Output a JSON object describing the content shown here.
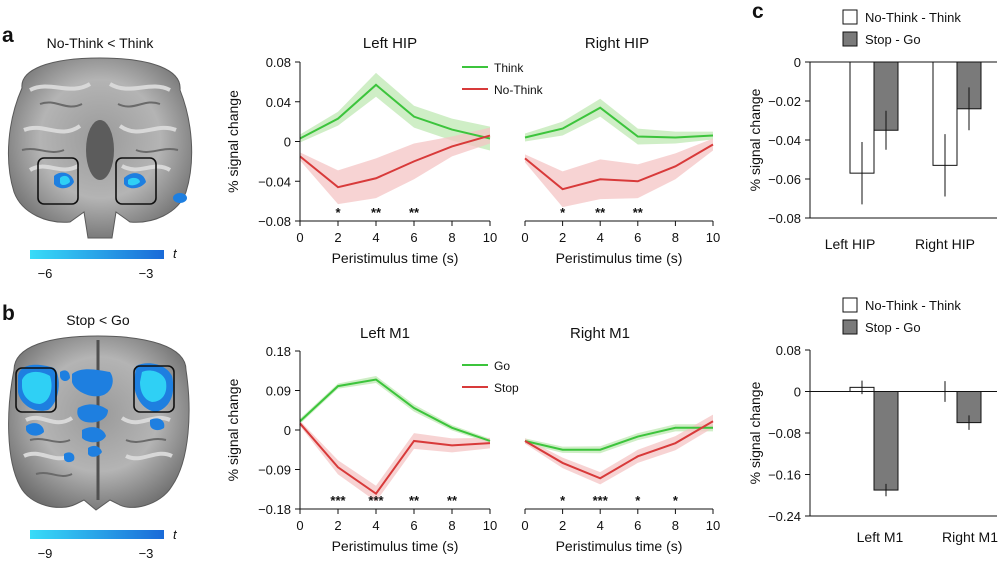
{
  "panels": {
    "a": "a",
    "b": "b",
    "c": "c"
  },
  "brains": {
    "a": {
      "title": "No-Think < Think",
      "colorbar_label": "t",
      "colorbar_min": "−6",
      "colorbar_max": "−3"
    },
    "b": {
      "title": "Stop < Go",
      "colorbar_label": "t",
      "colorbar_min": "−9",
      "colorbar_max": "−3"
    }
  },
  "colors": {
    "green": "#3cc43c",
    "red": "#d83a3a",
    "green_band": "#bfe8b3",
    "red_band": "#f4c4c4",
    "bar_white": "#ffffff",
    "bar_gray": "#7a7a7a",
    "brain_blue": "#1e7fe0",
    "brain_cyan": "#2fd0f5"
  },
  "chart_data": [
    {
      "id": "left_hip",
      "type": "line",
      "title": "Left HIP",
      "xlabel": "Peristimulus time (s)",
      "ylabel": "% signal change",
      "xlim": [
        0,
        10
      ],
      "ylim": [
        -0.08,
        0.08
      ],
      "xticks": [
        0,
        2,
        4,
        6,
        8,
        10
      ],
      "yticks": [
        -0.08,
        -0.04,
        0,
        0.04,
        0.08
      ],
      "yticklabels": [
        "−0.08",
        "−0.04",
        "0",
        "0.04",
        "0.08"
      ],
      "legend": [
        "Think",
        "No-Think"
      ],
      "x": [
        0,
        2,
        4,
        6,
        8,
        10
      ],
      "series": [
        {
          "name": "Think",
          "values": [
            0.003,
            0.023,
            0.057,
            0.025,
            0.012,
            0.003
          ],
          "err": [
            0.004,
            0.007,
            0.012,
            0.011,
            0.011,
            0.012
          ]
        },
        {
          "name": "No-Think",
          "values": [
            -0.015,
            -0.046,
            -0.037,
            -0.02,
            -0.005,
            0.006
          ],
          "err": [
            0.004,
            0.017,
            0.02,
            0.018,
            0.01,
            0.008
          ]
        }
      ],
      "stars": [
        {
          "x": 2,
          "text": "*"
        },
        {
          "x": 4,
          "text": "**"
        },
        {
          "x": 6,
          "text": "**"
        }
      ]
    },
    {
      "id": "right_hip",
      "type": "line",
      "title": "Right HIP",
      "xlabel": "Peristimulus time (s)",
      "ylabel": "",
      "xlim": [
        0,
        10
      ],
      "ylim": [
        -0.08,
        0.08
      ],
      "xticks": [
        0,
        2,
        4,
        6,
        8,
        10
      ],
      "yticks": [],
      "legend": [],
      "x": [
        0,
        2,
        4,
        6,
        8,
        10
      ],
      "series": [
        {
          "name": "Think",
          "values": [
            0.004,
            0.013,
            0.034,
            0.005,
            0.004,
            0.006
          ],
          "err": [
            0.004,
            0.007,
            0.009,
            0.008,
            0.006,
            0.004
          ]
        },
        {
          "name": "No-Think",
          "values": [
            -0.017,
            -0.048,
            -0.038,
            -0.04,
            -0.025,
            -0.003
          ],
          "err": [
            0.004,
            0.018,
            0.02,
            0.017,
            0.013,
            0.006
          ]
        }
      ],
      "stars": [
        {
          "x": 2,
          "text": "*"
        },
        {
          "x": 4,
          "text": "**"
        },
        {
          "x": 6,
          "text": "**"
        }
      ]
    },
    {
      "id": "left_m1",
      "type": "line",
      "title": "Left M1",
      "xlabel": "Peristimulus time (s)",
      "ylabel": "% signal change",
      "xlim": [
        0,
        10
      ],
      "ylim": [
        -0.18,
        0.18
      ],
      "xticks": [
        0,
        2,
        4,
        6,
        8,
        10
      ],
      "yticks": [
        -0.18,
        -0.09,
        0,
        0.09,
        0.18
      ],
      "yticklabels": [
        "−0.18",
        "−0.09",
        "0",
        "0.09",
        "0.18"
      ],
      "legend": [
        "Go",
        "Stop"
      ],
      "x": [
        0,
        2,
        4,
        6,
        8,
        10
      ],
      "series": [
        {
          "name": "Go",
          "values": [
            0.02,
            0.1,
            0.115,
            0.05,
            0.005,
            -0.025
          ],
          "err": [
            0.006,
            0.006,
            0.008,
            0.008,
            0.006,
            0.005
          ]
        },
        {
          "name": "Stop",
          "values": [
            0.015,
            -0.085,
            -0.145,
            -0.025,
            -0.035,
            -0.03
          ],
          "err": [
            0.006,
            0.016,
            0.018,
            0.018,
            0.016,
            0.012
          ]
        }
      ],
      "stars": [
        {
          "x": 2,
          "text": "***"
        },
        {
          "x": 4,
          "text": "***"
        },
        {
          "x": 6,
          "text": "**"
        },
        {
          "x": 8,
          "text": "**"
        }
      ]
    },
    {
      "id": "right_m1",
      "type": "line",
      "title": "Right M1",
      "xlabel": "Peristimulus time (s)",
      "ylabel": "",
      "xlim": [
        0,
        10
      ],
      "ylim": [
        -0.18,
        0.18
      ],
      "xticks": [
        0,
        2,
        4,
        6,
        8,
        10
      ],
      "yticks": [],
      "legend": [],
      "x": [
        0,
        2,
        4,
        6,
        8,
        10
      ],
      "series": [
        {
          "name": "Go",
          "values": [
            -0.025,
            -0.045,
            -0.045,
            -0.015,
            0.005,
            0.005
          ],
          "err": [
            0.006,
            0.007,
            0.008,
            0.008,
            0.008,
            0.008
          ]
        },
        {
          "name": "Stop",
          "values": [
            -0.025,
            -0.075,
            -0.11,
            -0.06,
            -0.03,
            0.02
          ],
          "err": [
            0.006,
            0.012,
            0.014,
            0.015,
            0.016,
            0.015
          ]
        }
      ],
      "stars": [
        {
          "x": 2,
          "text": "*"
        },
        {
          "x": 4,
          "text": "***"
        },
        {
          "x": 6,
          "text": "*"
        },
        {
          "x": 8,
          "text": "*"
        }
      ]
    },
    {
      "id": "c_hip",
      "type": "bar",
      "ylabel": "% signal change",
      "ylim": [
        -0.08,
        0
      ],
      "yticks": [
        -0.08,
        -0.06,
        -0.04,
        -0.02,
        0
      ],
      "yticklabels": [
        "−0.08",
        "−0.06",
        "−0.04",
        "−0.02",
        "0"
      ],
      "legend": [
        "No-Think - Think",
        "Stop - Go"
      ],
      "categories": [
        "Left HIP",
        "Right HIP"
      ],
      "series": [
        {
          "name": "No-Think - Think",
          "values": [
            -0.057,
            -0.053
          ],
          "err": [
            0.016,
            0.016
          ]
        },
        {
          "name": "Stop - Go",
          "values": [
            -0.035,
            -0.024
          ],
          "err": [
            0.01,
            0.011
          ]
        }
      ]
    },
    {
      "id": "c_m1",
      "type": "bar",
      "ylabel": "% signal change",
      "ylim": [
        -0.24,
        0.08
      ],
      "yticks": [
        -0.24,
        -0.16,
        -0.08,
        0,
        0.08
      ],
      "yticklabels": [
        "−0.24",
        "−0.16",
        "−0.08",
        "0",
        "0.08"
      ],
      "legend": [
        "No-Think - Think",
        "Stop - Go"
      ],
      "categories": [
        "Left M1",
        "Right M1"
      ],
      "series": [
        {
          "name": "No-Think - Think",
          "values": [
            0.008,
            0.0
          ],
          "err": [
            0.013,
            0.02
          ]
        },
        {
          "name": "Stop - Go",
          "values": [
            -0.19,
            -0.06
          ],
          "err": [
            0.012,
            0.014
          ]
        }
      ]
    }
  ]
}
